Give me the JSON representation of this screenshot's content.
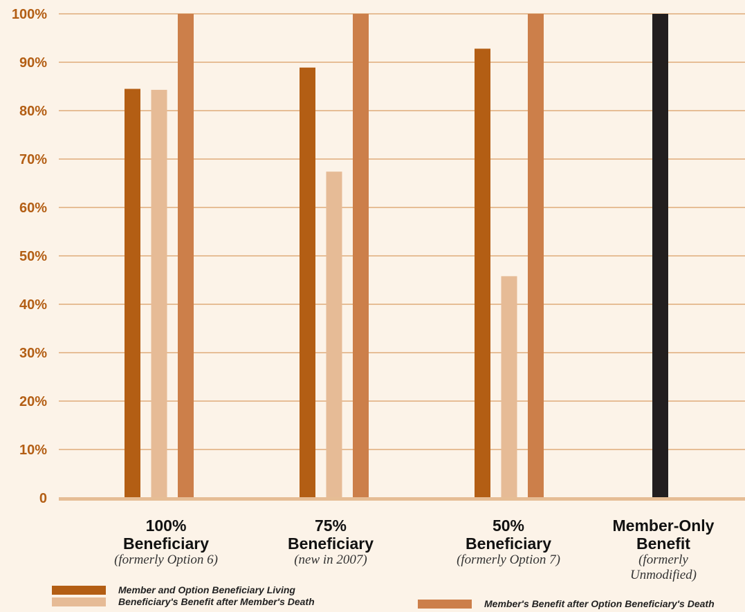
{
  "chart_data": {
    "type": "bar",
    "categories": [
      {
        "name": "100%",
        "name2": "Beneficiary",
        "sub": "(formerly Option 6)"
      },
      {
        "name": "75%",
        "name2": "Beneficiary",
        "sub": "(new in 2007)"
      },
      {
        "name": "50%",
        "name2": "Beneficiary",
        "sub": "(formerly Option 7)"
      },
      {
        "name": "Member-Only",
        "name2": "Benefit",
        "sub": "(formerly",
        "sub2": "Unmodified)"
      }
    ],
    "series": [
      {
        "name": "Member and Option Beneficiary Living",
        "color": "#b35e14",
        "values": [
          84.5,
          88.9,
          92.8,
          null
        ]
      },
      {
        "name": "Beneficiary's Benefit after Member's Death",
        "color": "#e6bb96",
        "values": [
          84.3,
          67.4,
          45.8,
          null
        ]
      },
      {
        "name": "Member's Benefit after Option Beneficiary's Death",
        "color": "#cc7f4a",
        "values": [
          100,
          100,
          100,
          null
        ]
      }
    ],
    "member_only": {
      "value": 100,
      "color": "#221e1f"
    },
    "y_ticks": [
      "0",
      "10%",
      "20%",
      "30%",
      "40%",
      "50%",
      "60%",
      "70%",
      "80%",
      "90%",
      "100%"
    ],
    "ylim": [
      0,
      100
    ],
    "grid": true,
    "legend_position": "bottom"
  }
}
